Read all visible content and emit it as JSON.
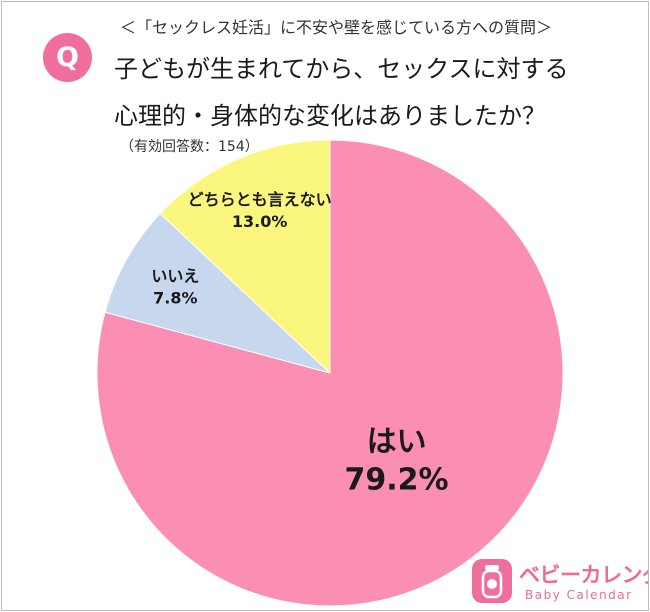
{
  "header": {
    "q_letter": "Q",
    "subtitle": "＜「セックレス妊活」に不安や壁を感じている方への質問＞",
    "question_line1": "子どもが生まれてから、セックスに対する",
    "question_line2": "心理的・身体的な変化はありましたか？",
    "sample_note": "（有効回答数：154）"
  },
  "chart_data": {
    "type": "pie",
    "start": "12 o'clock, clockwise",
    "slices": [
      {
        "label": "はい",
        "value": 79.2,
        "display": "79.2%",
        "color": "#fb8fb3"
      },
      {
        "label": "いいえ",
        "value": 7.8,
        "display": "7.8%",
        "color": "#c6d7ee"
      },
      {
        "label": "どちらとも言えない",
        "value": 13.0,
        "display": "13.0%",
        "color": "#fbf67e"
      }
    ]
  },
  "brand": {
    "icon": "baby-bottle-icon",
    "name": "ベビーカレンダー",
    "name_en": "Baby Calendar",
    "color": "#f06e9b"
  }
}
